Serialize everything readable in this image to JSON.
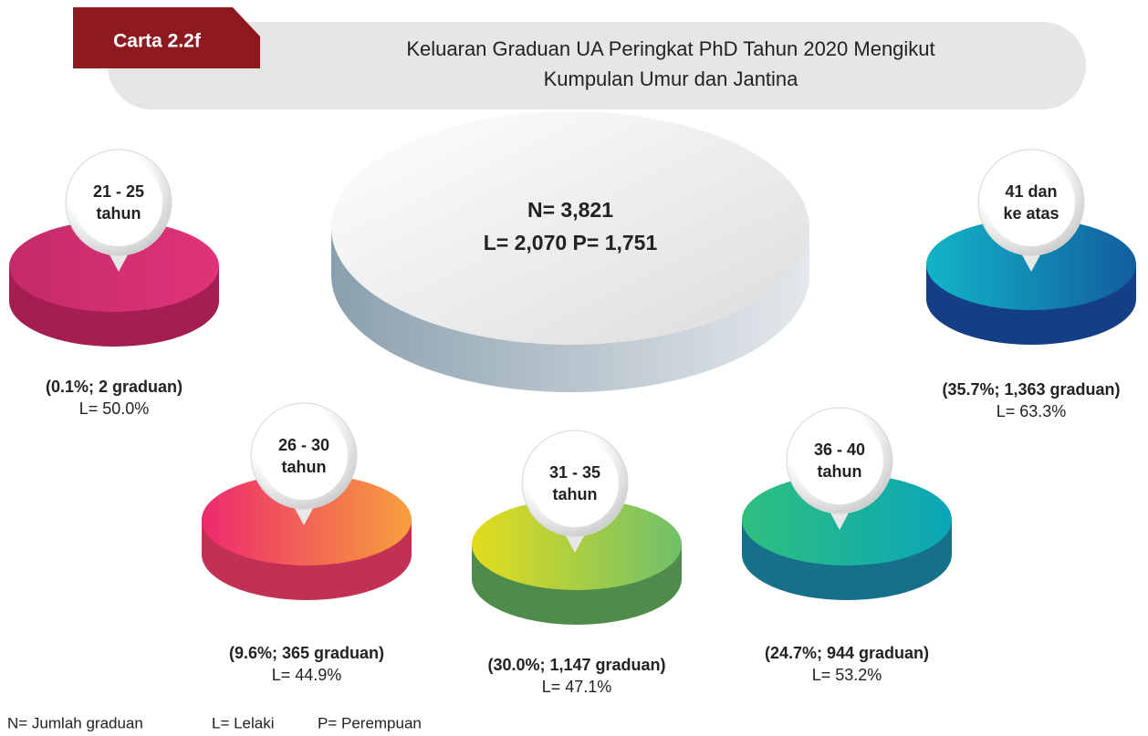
{
  "header": {
    "tag": "Carta 2.2f",
    "title_lines": [
      "Keluaran Graduan UA Peringkat PhD Tahun 2020 Mengikut",
      "Kumpulan Umur dan Jantina"
    ]
  },
  "total": {
    "lines": [
      "N= 3,821",
      "L= 2,070  P= 1,751"
    ]
  },
  "groups": [
    {
      "label_lines": [
        "21 - 25",
        "tahun"
      ],
      "share": "(0.1%; 2 graduan)",
      "male": "L= 50.0%"
    },
    {
      "label_lines": [
        "26 - 30",
        "tahun"
      ],
      "share": "(9.6%; 365 graduan)",
      "male": "L= 44.9%"
    },
    {
      "label_lines": [
        "31 - 35",
        "tahun"
      ],
      "share": "(30.0%; 1,147 graduan)",
      "male": "L= 47.1%"
    },
    {
      "label_lines": [
        "36 - 40",
        "tahun"
      ],
      "share": "(24.7%; 944 graduan)",
      "male": "L= 53.2%"
    },
    {
      "label_lines": [
        "41 dan",
        "ke atas"
      ],
      "share": "(35.7%; 1,363 graduan)",
      "male": "L= 63.3%"
    }
  ],
  "legend": [
    "N= Jumlah graduan",
    "L= Lelaki",
    "P= Perempuan"
  ]
}
